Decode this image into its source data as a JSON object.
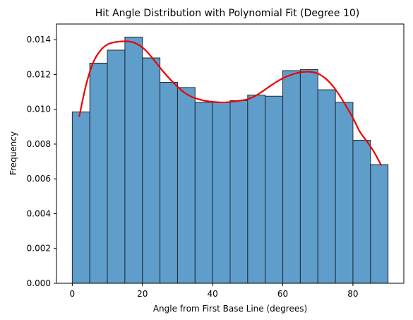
{
  "chart_data": {
    "type": "bar",
    "title": "Hit Angle Distribution with Polynomial Fit (Degree 10)",
    "xlabel": "Angle from First Base Line (degrees)",
    "ylabel": "Frequency",
    "xlim": [
      -4.5,
      94.5
    ],
    "ylim": [
      0,
      0.0149
    ],
    "x_ticks": [
      0,
      20,
      40,
      60,
      80
    ],
    "y_ticks": [
      0.0,
      0.002,
      0.004,
      0.006,
      0.008,
      0.01,
      0.012,
      0.014
    ],
    "y_tick_labels": [
      "0.000",
      "0.002",
      "0.004",
      "0.006",
      "0.008",
      "0.010",
      "0.012",
      "0.014"
    ],
    "grid": false,
    "bins": {
      "edges": [
        0,
        5,
        10,
        15,
        20,
        25,
        30,
        35,
        40,
        45,
        50,
        55,
        60,
        65,
        70,
        75,
        80,
        85,
        90
      ],
      "values": [
        0.00985,
        0.01265,
        0.0134,
        0.01415,
        0.01295,
        0.01155,
        0.01125,
        0.0104,
        0.0104,
        0.0105,
        0.01082,
        0.01075,
        0.01222,
        0.01228,
        0.01112,
        0.0104,
        0.00822,
        0.00682
      ]
    },
    "fit_curve": {
      "x": [
        2,
        4,
        6,
        8,
        10,
        12,
        14,
        16,
        18,
        20,
        22,
        24,
        26,
        28,
        30,
        32,
        34,
        36,
        38,
        40,
        42,
        44,
        46,
        48,
        50,
        52,
        54,
        56,
        58,
        60,
        62,
        64,
        66,
        68,
        70,
        72,
        74,
        76,
        78,
        80,
        82,
        84,
        86,
        88
      ],
      "y": [
        0.0096,
        0.01145,
        0.0127,
        0.01337,
        0.01372,
        0.01385,
        0.0139,
        0.0139,
        0.0138,
        0.01355,
        0.01315,
        0.01265,
        0.01215,
        0.0117,
        0.0113,
        0.01095,
        0.01072,
        0.01058,
        0.01048,
        0.01043,
        0.0104,
        0.0104,
        0.01045,
        0.0105,
        0.01058,
        0.01075,
        0.011,
        0.01128,
        0.01155,
        0.01178,
        0.01195,
        0.01208,
        0.01215,
        0.01215,
        0.01205,
        0.0118,
        0.0114,
        0.01085,
        0.0102,
        0.0095,
        0.0087,
        0.00815,
        0.00755,
        0.0068
      ]
    },
    "colors": {
      "bar_fill": "#5f9ecb",
      "bar_edge": "#1f2a33",
      "fit_line": "#ee0000",
      "axis": "#000000",
      "background": "#ffffff"
    }
  }
}
